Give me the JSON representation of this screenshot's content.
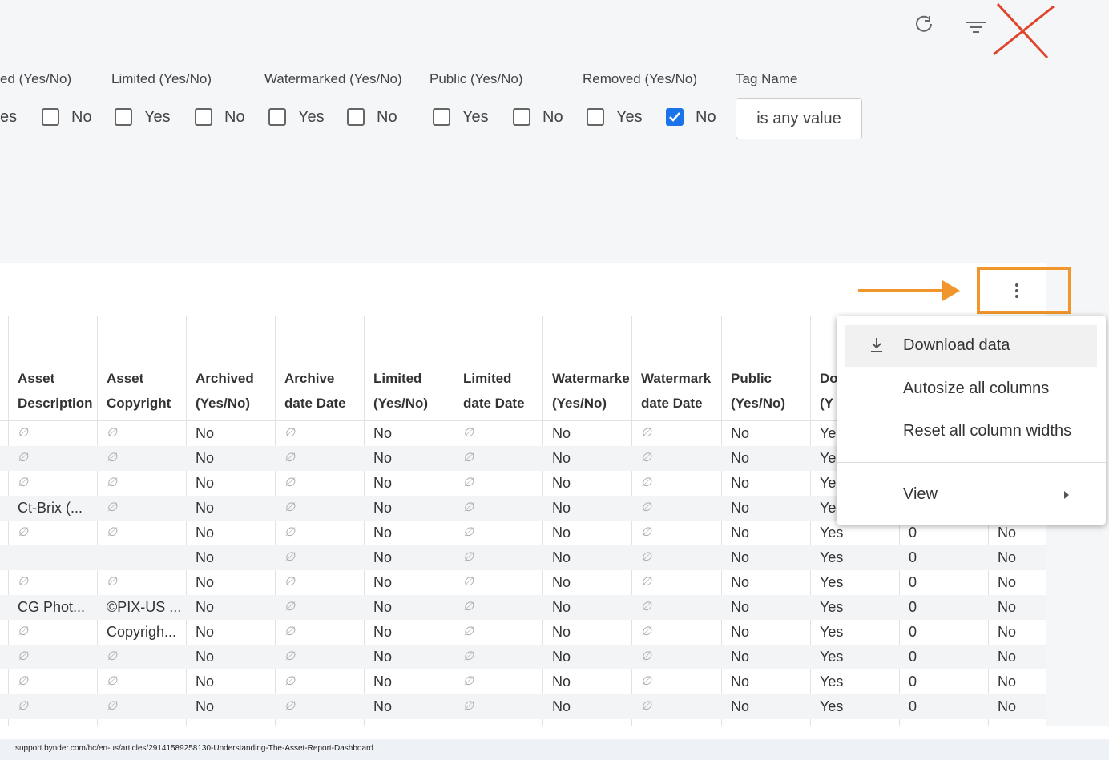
{
  "filters": {
    "groups": [
      {
        "label": "ed (Yes/No)",
        "options": [
          {
            "text": "es",
            "checked": null
          },
          {
            "text": "No",
            "checked": false
          }
        ]
      },
      {
        "label": "Limited (Yes/No)",
        "options": [
          {
            "text": "Yes",
            "checked": false
          },
          {
            "text": "No",
            "checked": false
          }
        ]
      },
      {
        "label": "Watermarked (Yes/No)",
        "options": [
          {
            "text": "Yes",
            "checked": false
          },
          {
            "text": "No",
            "checked": false
          }
        ]
      },
      {
        "label": "Public (Yes/No)",
        "options": [
          {
            "text": "Yes",
            "checked": false
          },
          {
            "text": "No",
            "checked": false
          }
        ]
      },
      {
        "label": "Removed (Yes/No)",
        "options": [
          {
            "text": "Yes",
            "checked": false
          },
          {
            "text": "No",
            "checked": true
          }
        ]
      }
    ],
    "tag": {
      "label": "Tag Name",
      "button": "is any value"
    }
  },
  "table": {
    "headers": [
      [
        "Asset",
        "Description"
      ],
      [
        "Asset",
        "Copyright"
      ],
      [
        "Archived",
        "(Yes/No)"
      ],
      [
        "Archive",
        "date Date"
      ],
      [
        "Limited",
        "(Yes/No)"
      ],
      [
        "Limited",
        "date Date"
      ],
      [
        "Watermarke",
        "(Yes/No)"
      ],
      [
        "Watermark",
        "date Date"
      ],
      [
        "Public",
        "(Yes/No)"
      ],
      [
        "Do",
        "(Y"
      ]
    ],
    "rows": [
      [
        "∅",
        "∅",
        "No",
        "∅",
        "No",
        "∅",
        "No",
        "∅",
        "No",
        "Ye"
      ],
      [
        "∅",
        "∅",
        "No",
        "∅",
        "No",
        "∅",
        "No",
        "∅",
        "No",
        "Ye"
      ],
      [
        "∅",
        "∅",
        "No",
        "∅",
        "No",
        "∅",
        "No",
        "∅",
        "No",
        "Ye"
      ],
      [
        "Ct-Brix (...",
        "∅",
        "No",
        "∅",
        "No",
        "∅",
        "No",
        "∅",
        "No",
        "Ye"
      ],
      [
        "∅",
        "∅",
        "No",
        "∅",
        "No",
        "∅",
        "No",
        "∅",
        "No",
        "Yes",
        "0",
        "No"
      ],
      [
        null,
        null,
        "No",
        "∅",
        "No",
        "∅",
        "No",
        "∅",
        "No",
        "Yes",
        "0",
        "No"
      ],
      [
        "∅",
        "∅",
        "No",
        "∅",
        "No",
        "∅",
        "No",
        "∅",
        "No",
        "Yes",
        "0",
        "No"
      ],
      [
        "CG Phot...",
        "©PIX-US ...",
        "No",
        "∅",
        "No",
        "∅",
        "No",
        "∅",
        "No",
        "Yes",
        "0",
        "No"
      ],
      [
        "∅",
        "Copyrigh...",
        "No",
        "∅",
        "No",
        "∅",
        "No",
        "∅",
        "No",
        "Yes",
        "0",
        "No"
      ],
      [
        "∅",
        "∅",
        "No",
        "∅",
        "No",
        "∅",
        "No",
        "∅",
        "No",
        "Yes",
        "0",
        "No"
      ],
      [
        "∅",
        "∅",
        "No",
        "∅",
        "No",
        "∅",
        "No",
        "∅",
        "No",
        "Yes",
        "0",
        "No"
      ],
      [
        "∅",
        "∅",
        "No",
        "∅",
        "No",
        "∅",
        "No",
        "∅",
        "No",
        "Yes",
        "0",
        "No"
      ]
    ]
  },
  "menu": {
    "items": [
      "Download data",
      "Autosize all columns",
      "Reset all column widths",
      "View"
    ]
  },
  "browser": {
    "url": "support.bynder.com/hc/en-us/articles/29141589258130-Understanding-The-Asset-Report-Dashboard"
  }
}
